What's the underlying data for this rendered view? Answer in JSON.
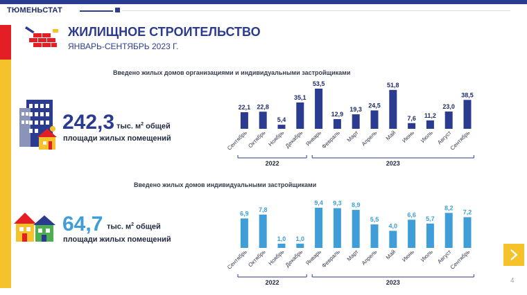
{
  "header": {
    "brand": "ТЮМЕНЬСТАТ",
    "title": "ЖИЛИЩНОЕ СТРОИТЕЛЬСТВО",
    "subtitle": "ЯНВАРЬ-СЕНТЯБРЬ 2023 Г."
  },
  "section1": {
    "total": "242,3",
    "unit_prefix": "тыс. м",
    "unit_sup": "2",
    "unit_suffix": " общей",
    "unit_line2": "площади жилых помещений"
  },
  "section2": {
    "total": "64,7",
    "unit_prefix": "тыс. м",
    "unit_sup": "2",
    "unit_suffix": " общей",
    "unit_line2": "площади жилых помещений"
  },
  "page_number": "4",
  "colors": {
    "dark_blue": "#2b3b8f",
    "light_blue": "#3f9ed8",
    "yellow": "#f6c22b",
    "red": "#e31e24"
  },
  "icons": {
    "next": "chevron-right-icon",
    "title": "brick-wall-icon",
    "section1": "apartment-building-icon",
    "section2": "houses-icon"
  },
  "chart_data": [
    {
      "type": "bar",
      "title": "Введено жилых домов организациями и индивидуальными застройщиками",
      "categories": [
        "Сентябрь",
        "Октябрь",
        "Ноябрь",
        "Декабрь",
        "Январь",
        "Февраль",
        "Март",
        "Апрель",
        "Май",
        "Июнь",
        "Июль",
        "Август",
        "Сентябрь"
      ],
      "values": [
        22.1,
        22.8,
        5.4,
        35.1,
        53.5,
        12.9,
        19.3,
        24.5,
        51.8,
        7.6,
        11.2,
        23.0,
        38.5
      ],
      "value_labels": [
        "22,1",
        "22,8",
        "5,4",
        "35,1",
        "53,5",
        "12,9",
        "19,3",
        "24,5",
        "51,8",
        "7,6",
        "11,2",
        "23,0",
        "38,5"
      ],
      "groups": [
        {
          "label": "2022",
          "from": 0,
          "to": 3
        },
        {
          "label": "2023",
          "from": 4,
          "to": 12
        }
      ],
      "ylim": [
        0,
        53.5
      ],
      "color": "#2b3b8f",
      "grid": false
    },
    {
      "type": "bar",
      "title": "Введено жилых домов индивидуальными застройщиками",
      "categories": [
        "Сентябрь",
        "Октябрь",
        "Ноябрь",
        "Декабрь",
        "Январь",
        "Февраль",
        "Март",
        "Апрель",
        "Май",
        "Июнь",
        "Июль",
        "Август",
        "Сентябрь"
      ],
      "values": [
        6.9,
        7.8,
        1.0,
        1.0,
        9.4,
        9.3,
        8.9,
        5.5,
        4.0,
        6.6,
        5.7,
        8.2,
        7.2
      ],
      "value_labels": [
        "6,9",
        "7,8",
        "1,0",
        "1,0",
        "9,4",
        "9,3",
        "8,9",
        "5,5",
        "4,0",
        "6,6",
        "5,7",
        "8,2",
        "7,2"
      ],
      "groups": [
        {
          "label": "2022",
          "from": 0,
          "to": 3
        },
        {
          "label": "2023",
          "from": 4,
          "to": 12
        }
      ],
      "ylim": [
        0,
        9.4
      ],
      "color": "#3f9ed8",
      "grid": false
    }
  ]
}
